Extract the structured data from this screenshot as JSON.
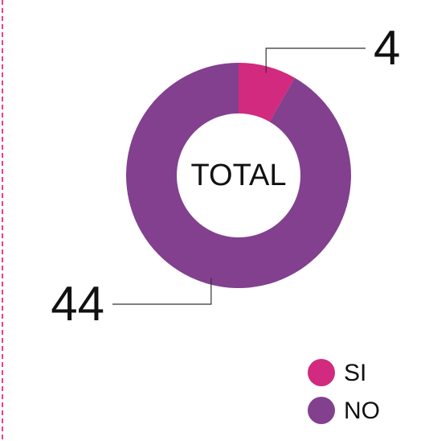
{
  "chart_data": {
    "type": "donut",
    "center_label": "TOTAL",
    "categories": [
      "SI",
      "NO"
    ],
    "values": [
      4,
      44
    ],
    "colors": [
      "#d12a7f",
      "#82408f"
    ],
    "legend": "bottom-right"
  }
}
